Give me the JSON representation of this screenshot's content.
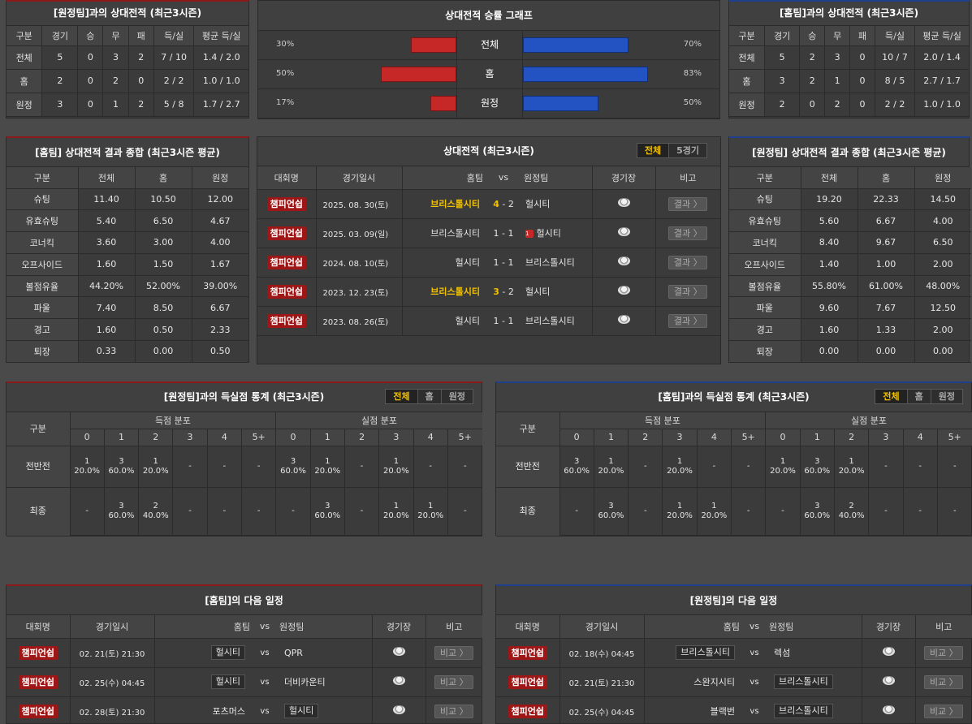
{
  "away_h2h": {
    "title": "[원정팀]과의 상대전적 (최근3시즌)",
    "headers": [
      "구분",
      "경기",
      "승",
      "무",
      "패",
      "득/실",
      "평균 득/실"
    ],
    "rows": [
      [
        "전체",
        "5",
        "0",
        "3",
        "2",
        "7 / 10",
        "1.4 / 2.0"
      ],
      [
        "홈",
        "2",
        "0",
        "2",
        "0",
        "2 / 2",
        "1.0 / 1.0"
      ],
      [
        "원정",
        "3",
        "0",
        "1",
        "2",
        "5 / 8",
        "1.7 / 2.7"
      ]
    ]
  },
  "win_graph": {
    "title": "상대전적 승률 그래프",
    "rows": [
      {
        "label": "전체",
        "left_pct": "30%",
        "left_val": 30,
        "right_pct": "70%",
        "right_val": 70
      },
      {
        "label": "홈",
        "left_pct": "50%",
        "left_val": 50,
        "right_pct": "83%",
        "right_val": 83
      },
      {
        "label": "원정",
        "left_pct": "17%",
        "left_val": 17,
        "right_pct": "50%",
        "right_val": 50
      }
    ]
  },
  "home_h2h": {
    "title": "[홈팀]과의 상대전적 (최근3시즌)",
    "headers": [
      "구분",
      "경기",
      "승",
      "무",
      "패",
      "득/실",
      "평균 득/실"
    ],
    "rows": [
      [
        "전체",
        "5",
        "2",
        "3",
        "0",
        "10 / 7",
        "2.0 / 1.4"
      ],
      [
        "홈",
        "3",
        "2",
        "1",
        "0",
        "8 / 5",
        "2.7 / 1.7"
      ],
      [
        "원정",
        "2",
        "0",
        "2",
        "0",
        "2 / 2",
        "1.0 / 1.0"
      ]
    ]
  },
  "home_summary": {
    "title": "[홈팀] 상대전적 결과 종합 (최근3시즌 평균)",
    "headers": [
      "구분",
      "전체",
      "홈",
      "원정"
    ],
    "rows": [
      [
        "슈팅",
        "11.40",
        "10.50",
        "12.00"
      ],
      [
        "유효슈팅",
        "5.40",
        "6.50",
        "4.67"
      ],
      [
        "코너킥",
        "3.60",
        "3.00",
        "4.00"
      ],
      [
        "오프사이드",
        "1.60",
        "1.50",
        "1.67"
      ],
      [
        "볼점유율",
        "44.20%",
        "52.00%",
        "39.00%"
      ],
      [
        "파울",
        "7.40",
        "8.50",
        "6.67"
      ],
      [
        "경고",
        "1.60",
        "0.50",
        "2.33"
      ],
      [
        "퇴장",
        "0.33",
        "0.00",
        "0.50"
      ]
    ]
  },
  "matches": {
    "title": "상대전적 (최근3시즌)",
    "tabs": [
      "전체",
      "5경기"
    ],
    "headers": {
      "league": "대회명",
      "date": "경기일시",
      "home": "홈팀",
      "vs": "vs",
      "away": "원정팀",
      "venue": "경기장",
      "note": "비고"
    },
    "rows": [
      {
        "league": "챔피언쉽",
        "date": "2025. 08. 30(토)",
        "home": "브리스톨시티",
        "hs": "4",
        "as": "2",
        "away": "헐시티",
        "home_win": true,
        "card": ""
      },
      {
        "league": "챔피언쉽",
        "date": "2025. 03. 09(일)",
        "home": "브리스톨시티",
        "hs": "1",
        "as": "1",
        "away": "헐시티",
        "home_win": false,
        "card": "1"
      },
      {
        "league": "챔피언쉽",
        "date": "2024. 08. 10(토)",
        "home": "헐시티",
        "hs": "1",
        "as": "1",
        "away": "브리스톨시티",
        "home_win": false,
        "card": ""
      },
      {
        "league": "챔피언쉽",
        "date": "2023. 12. 23(토)",
        "home": "브리스톨시티",
        "hs": "3",
        "as": "2",
        "away": "헐시티",
        "home_win": true,
        "card": ""
      },
      {
        "league": "챔피언쉽",
        "date": "2023. 08. 26(토)",
        "home": "헐시티",
        "hs": "1",
        "as": "1",
        "away": "브리스톨시티",
        "home_win": false,
        "card": ""
      }
    ],
    "result_label": "결과 〉"
  },
  "away_summary": {
    "title": "[원정팀] 상대전적 결과 종합 (최근3시즌 평균)",
    "headers": [
      "구분",
      "전체",
      "홈",
      "원정"
    ],
    "rows": [
      [
        "슈팅",
        "19.20",
        "22.33",
        "14.50"
      ],
      [
        "유효슈팅",
        "5.60",
        "6.67",
        "4.00"
      ],
      [
        "코너킥",
        "8.40",
        "9.67",
        "6.50"
      ],
      [
        "오프사이드",
        "1.40",
        "1.00",
        "2.00"
      ],
      [
        "볼점유율",
        "55.80%",
        "61.00%",
        "48.00%"
      ],
      [
        "파울",
        "9.60",
        "7.67",
        "12.50"
      ],
      [
        "경고",
        "1.60",
        "1.33",
        "2.00"
      ],
      [
        "퇴장",
        "0.00",
        "0.00",
        "0.00"
      ]
    ]
  },
  "away_goals": {
    "title": "[원정팀]과의 득실점 통계 (최근3시즌)",
    "tabs": [
      "전체",
      "홈",
      "원정"
    ],
    "group_label": "구분",
    "scored_label": "득점 분포",
    "conceded_label": "실점 분포",
    "cols": [
      "0",
      "1",
      "2",
      "3",
      "4",
      "5+"
    ],
    "rows": [
      {
        "label": "전반전",
        "scored": [
          [
            "1",
            "20.0%"
          ],
          [
            "3",
            "60.0%"
          ],
          [
            "1",
            "20.0%"
          ],
          [
            "-",
            ""
          ],
          [
            "-",
            ""
          ],
          [
            "-",
            ""
          ]
        ],
        "conceded": [
          [
            "3",
            "60.0%"
          ],
          [
            "1",
            "20.0%"
          ],
          [
            "-",
            ""
          ],
          [
            "1",
            "20.0%"
          ],
          [
            "-",
            ""
          ],
          [
            "-",
            ""
          ]
        ]
      },
      {
        "label": "최종",
        "scored": [
          [
            "-",
            ""
          ],
          [
            "3",
            "60.0%"
          ],
          [
            "2",
            "40.0%"
          ],
          [
            "-",
            ""
          ],
          [
            "-",
            ""
          ],
          [
            "-",
            ""
          ]
        ],
        "conceded": [
          [
            "-",
            ""
          ],
          [
            "3",
            "60.0%"
          ],
          [
            "-",
            ""
          ],
          [
            "1",
            "20.0%"
          ],
          [
            "1",
            "20.0%"
          ],
          [
            "-",
            ""
          ]
        ]
      }
    ]
  },
  "home_goals": {
    "title": "[홈팀]과의 득실점 통계 (최근3시즌)",
    "tabs": [
      "전체",
      "홈",
      "원정"
    ],
    "group_label": "구분",
    "scored_label": "득점 분포",
    "conceded_label": "실점 분포",
    "cols": [
      "0",
      "1",
      "2",
      "3",
      "4",
      "5+"
    ],
    "rows": [
      {
        "label": "전반전",
        "scored": [
          [
            "3",
            "60.0%"
          ],
          [
            "1",
            "20.0%"
          ],
          [
            "-",
            ""
          ],
          [
            "1",
            "20.0%"
          ],
          [
            "-",
            ""
          ],
          [
            "-",
            ""
          ]
        ],
        "conceded": [
          [
            "1",
            "20.0%"
          ],
          [
            "3",
            "60.0%"
          ],
          [
            "1",
            "20.0%"
          ],
          [
            "-",
            ""
          ],
          [
            "-",
            ""
          ],
          [
            "-",
            ""
          ]
        ]
      },
      {
        "label": "최종",
        "scored": [
          [
            "-",
            ""
          ],
          [
            "3",
            "60.0%"
          ],
          [
            "-",
            ""
          ],
          [
            "1",
            "20.0%"
          ],
          [
            "1",
            "20.0%"
          ],
          [
            "-",
            ""
          ]
        ],
        "conceded": [
          [
            "-",
            ""
          ],
          [
            "3",
            "60.0%"
          ],
          [
            "2",
            "40.0%"
          ],
          [
            "-",
            ""
          ],
          [
            "-",
            ""
          ],
          [
            "-",
            ""
          ]
        ]
      }
    ]
  },
  "home_next": {
    "title": "[홈팀]의 다음 일정",
    "headers": {
      "league": "대회명",
      "date": "경기일시",
      "home": "홈팀",
      "vs": "vs",
      "away": "원정팀",
      "venue": "경기장",
      "note": "비고"
    },
    "rows": [
      {
        "league": "챔피언쉽",
        "date": "02. 21(토) 21:30",
        "home": "헐시티",
        "away": "QPR",
        "tag": "home"
      },
      {
        "league": "챔피언쉽",
        "date": "02. 25(수) 04:45",
        "home": "헐시티",
        "away": "더비카운티",
        "tag": "home"
      },
      {
        "league": "챔피언쉽",
        "date": "02. 28(토) 21:30",
        "home": "포츠머스",
        "away": "헐시티",
        "tag": "away"
      }
    ],
    "btn": "비교 〉"
  },
  "away_next": {
    "title": "[원정팀]의 다음 일정",
    "headers": {
      "league": "대회명",
      "date": "경기일시",
      "home": "홈팀",
      "vs": "vs",
      "away": "원정팀",
      "venue": "경기장",
      "note": "비고"
    },
    "rows": [
      {
        "league": "챔피언쉽",
        "date": "02. 18(수) 04:45",
        "home": "브리스톨시티",
        "away": "렉섬",
        "tag": "home"
      },
      {
        "league": "챔피언쉽",
        "date": "02. 21(토) 21:30",
        "home": "스완지시티",
        "away": "브리스톨시티",
        "tag": "away"
      },
      {
        "league": "챔피언쉽",
        "date": "02. 25(수) 04:45",
        "home": "블랙번",
        "away": "브리스톨시티",
        "tag": "away"
      }
    ],
    "btn": "비교 〉"
  }
}
